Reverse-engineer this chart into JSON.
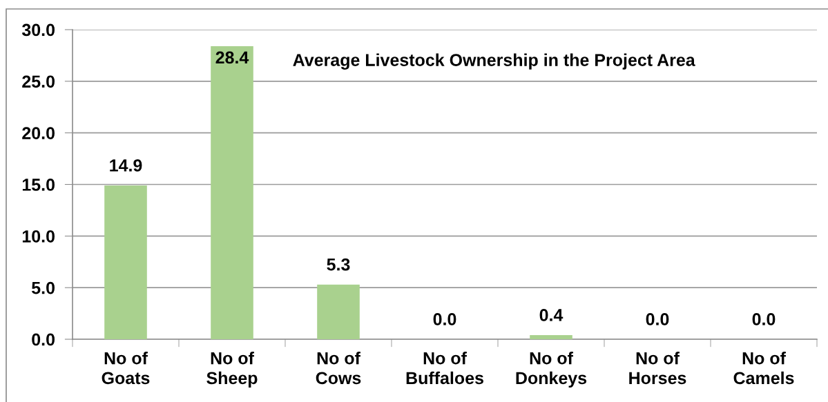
{
  "chart_data": {
    "type": "bar",
    "title": "Average Livestock Ownership in the Project Area",
    "categories": [
      "No of\nGoats",
      "No of\nSheep",
      "No of\nCows",
      "No of\nBuffaloes",
      "No of\nDonkeys",
      "No of\nHorses",
      "No of\nCamels"
    ],
    "values": [
      14.9,
      28.4,
      5.3,
      0,
      0.4,
      0,
      0
    ],
    "value_labels": [
      "14.9",
      "28.4",
      "5.3",
      "0.0",
      "0.4",
      "0.0",
      "0.0"
    ],
    "color": "#a9d18e",
    "ylim": [
      0,
      30
    ],
    "yticks": [
      {
        "value": 0,
        "label": "0.0"
      },
      {
        "value": 5,
        "label": "5.0"
      },
      {
        "value": 10,
        "label": "10.0"
      },
      {
        "value": 15,
        "label": "15.0"
      },
      {
        "value": 20,
        "label": "20.0"
      },
      {
        "value": 25,
        "label": "25.0"
      },
      {
        "value": 30,
        "label": "30.0"
      }
    ],
    "grid": "y",
    "legend": false
  }
}
